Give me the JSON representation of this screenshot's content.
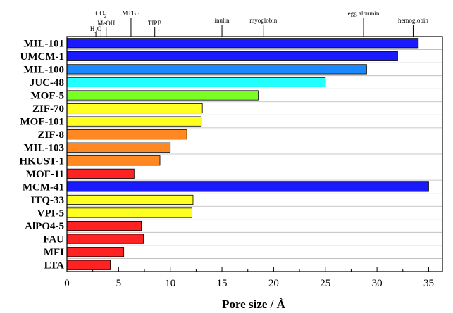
{
  "chart_data": {
    "type": "bar",
    "orientation": "horizontal",
    "title": "",
    "xlabel": "Pore size / Å",
    "ylabel": "",
    "xlim": [
      0,
      37
    ],
    "xticks": [
      0,
      5,
      10,
      15,
      20,
      25,
      30,
      35
    ],
    "xtick_labels": [
      "0",
      "5",
      "10",
      "15",
      "20",
      "25",
      "30",
      "35"
    ],
    "grid": "horizontal",
    "legend": "none",
    "categories": [
      "MIL-101",
      "UMCM-1",
      "MIL-100",
      "JUC-48",
      "MOF-5",
      "ZIF-70",
      "MOF-101",
      "ZIF-8",
      "MIL-103",
      "HKUST-1",
      "MOF-11",
      "MCM-41",
      "ITQ-33",
      "VPI-5",
      "AlPO4-5",
      "FAU",
      "MFI",
      "LTA"
    ],
    "values": [
      34.0,
      32.0,
      29.0,
      25.0,
      18.5,
      13.1,
      13.0,
      11.6,
      10.0,
      9.0,
      6.5,
      35.0,
      12.2,
      12.1,
      7.2,
      7.4,
      5.5,
      4.2
    ],
    "bar_colors": [
      "#1a1aff",
      "#1a1aff",
      "#1a88ff",
      "#22ffff",
      "#7aff22",
      "#ffff22",
      "#ffff22",
      "#ff8822",
      "#ff8822",
      "#ff8822",
      "#ff2222",
      "#1a1aff",
      "#ffff22",
      "#ffff22",
      "#ff2222",
      "#ff2222",
      "#ff2222",
      "#ff2222"
    ],
    "molecule_markers": [
      {
        "label": "H2O",
        "formula_main": "H",
        "formula_sub": "2",
        "formula_tail": "O",
        "value": 2.8
      },
      {
        "label": "CO2",
        "formula_main": "CO",
        "formula_sub": "2",
        "formula_tail": "",
        "value": 3.3
      },
      {
        "label": "MeOH",
        "value": 3.8
      },
      {
        "label": "MTBE",
        "value": 6.2
      },
      {
        "label": "TIPB",
        "value": 8.5
      },
      {
        "label": "inulin",
        "value": 15.0
      },
      {
        "label": "myoglobin",
        "value": 19.0
      },
      {
        "label": "egg albumin",
        "value": 28.7
      },
      {
        "label": "hemoglobin",
        "value": 33.5
      }
    ]
  }
}
